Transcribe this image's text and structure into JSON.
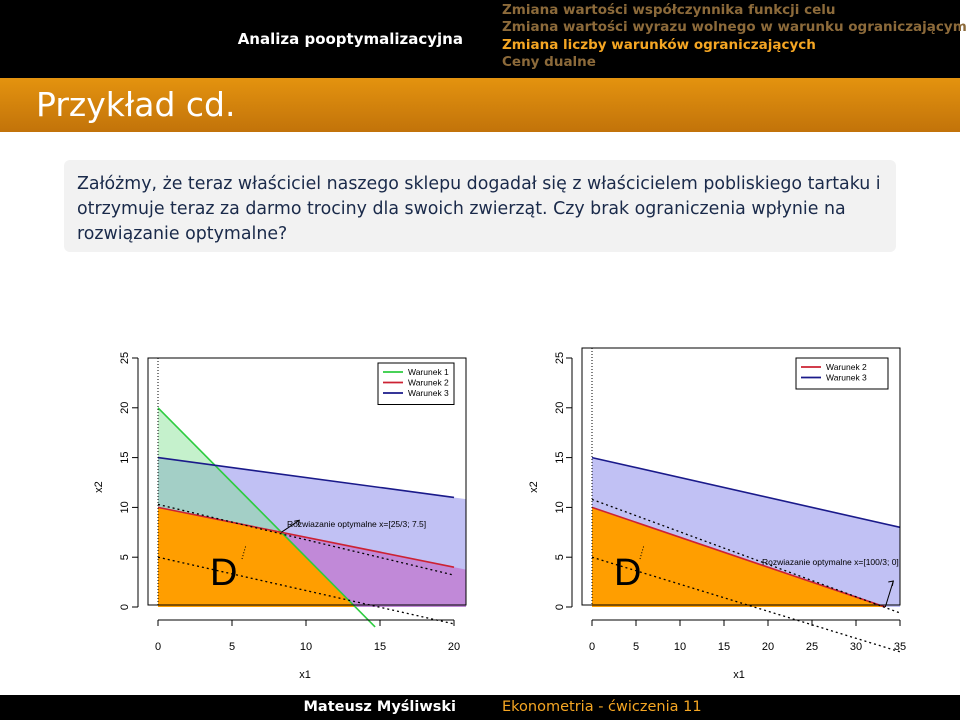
{
  "header": {
    "section": "Analiza pooptymalizacyjna",
    "subsections": [
      "Zmiana wartości współczynnika funkcji celu",
      "Zmiana wartości wyrazu wolnego w warunku ograniczającym",
      "Zmiana liczby warunków ograniczających",
      "Ceny dualne"
    ],
    "active_subsection_index": 2
  },
  "frame": {
    "title": "Przykład cd.",
    "block_text": "Załóżmy, że teraz właściciel naszego sklepu dogadał się z właścicielem pobliskiego tartaku i otrzymuje teraz za darmo trociny dla swoich zwierząt. Czy brak ograniczenia wpłynie na rozwiązanie optymalne?"
  },
  "footer": {
    "author": "Mateusz Myśliwski",
    "title": "Ekonometria - ćwiczenia 11"
  },
  "chart_data": [
    {
      "type": "line",
      "xlabel": "x1",
      "ylabel": "x2",
      "xlim": [
        0,
        20
      ],
      "ylim": [
        0,
        25
      ],
      "xticks": [
        0,
        5,
        10,
        15,
        20
      ],
      "yticks": [
        0,
        5,
        10,
        15,
        20,
        25
      ],
      "legend_position": "top-right",
      "region_label": "D",
      "annotation": "Rozwiazanie optymalne x=[25/3; 7.5]",
      "optimum": [
        8.33,
        7.5
      ],
      "series": [
        {
          "name": "Warunek 1",
          "color": "#2ecc40",
          "x": [
            0,
            14.67
          ],
          "y": [
            20,
            -2
          ]
        },
        {
          "name": "Warunek 2",
          "color": "#cc2233",
          "x": [
            0,
            20
          ],
          "y": [
            10,
            4
          ]
        },
        {
          "name": "Warunek 3",
          "color": "#1a1a8a",
          "x": [
            0,
            20
          ],
          "y": [
            15,
            11
          ]
        }
      ],
      "objective_lines": [
        {
          "x": [
            0,
            20
          ],
          "y": [
            5,
            -1.7
          ]
        },
        {
          "x": [
            0,
            20
          ],
          "y": [
            10.3,
            3.2
          ]
        }
      ]
    },
    {
      "type": "line",
      "xlabel": "x1",
      "ylabel": "x2",
      "xlim": [
        0,
        35
      ],
      "ylim": [
        0,
        25
      ],
      "xticks": [
        0,
        5,
        10,
        15,
        20,
        25,
        30,
        35
      ],
      "yticks": [
        0,
        5,
        10,
        15,
        20,
        25
      ],
      "legend_position": "top-right",
      "region_label": "D",
      "annotation": "Rozwiazanie optymalne x=[100/3; 0]",
      "optimum": [
        33.33,
        0
      ],
      "series": [
        {
          "name": "Warunek 2",
          "color": "#cc2233",
          "x": [
            0,
            33.33
          ],
          "y": [
            10,
            0
          ]
        },
        {
          "name": "Warunek 3",
          "color": "#1a1a8a",
          "x": [
            0,
            35
          ],
          "y": [
            15,
            8
          ]
        }
      ],
      "objective_lines": [
        {
          "x": [
            0,
            35
          ],
          "y": [
            5,
            -4.5
          ]
        },
        {
          "x": [
            0,
            35
          ],
          "y": [
            10.8,
            -0.6
          ]
        }
      ]
    }
  ]
}
